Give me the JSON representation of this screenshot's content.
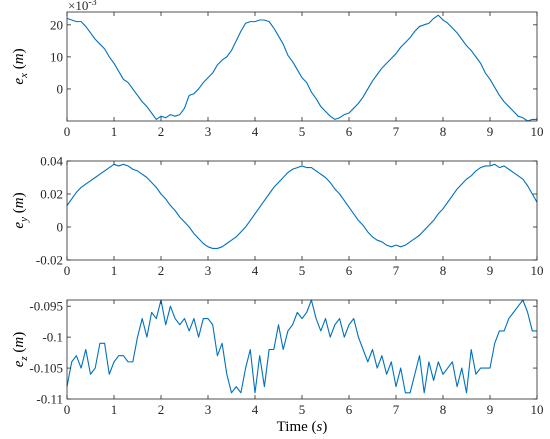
{
  "chart_data": [
    {
      "type": "line",
      "ylabel": "e_x (m)",
      "ylabel_main": "e",
      "ylabel_sub": "x",
      "ylabel_unit": "(m)",
      "exponent": "×10",
      "exponent_power": "-3",
      "xlim": [
        0,
        10
      ],
      "ylim": [
        -10,
        24
      ],
      "xticks": [
        0,
        1,
        2,
        3,
        4,
        5,
        6,
        7,
        8,
        9,
        10
      ],
      "xtick_labels": [
        "0",
        "1",
        "2",
        "3",
        "4",
        "5",
        "6",
        "7",
        "8",
        "9",
        "10"
      ],
      "yticks": [
        0,
        10,
        20
      ],
      "ytick_labels": [
        "0",
        "10",
        "20"
      ],
      "grid": false,
      "series": [
        {
          "color": "#0072bd",
          "x": [
            0,
            0.1,
            0.2,
            0.3,
            0.4,
            0.5,
            0.6,
            0.7,
            0.8,
            0.9,
            1.0,
            1.1,
            1.2,
            1.3,
            1.4,
            1.5,
            1.6,
            1.7,
            1.8,
            1.9,
            2.0,
            2.1,
            2.2,
            2.3,
            2.4,
            2.5,
            2.6,
            2.7,
            2.8,
            2.9,
            3.0,
            3.1,
            3.2,
            3.3,
            3.4,
            3.5,
            3.6,
            3.7,
            3.8,
            3.9,
            4.0,
            4.1,
            4.2,
            4.3,
            4.4,
            4.5,
            4.6,
            4.7,
            4.8,
            4.9,
            5.0,
            5.1,
            5.2,
            5.3,
            5.4,
            5.5,
            5.6,
            5.7,
            5.8,
            5.9,
            6.0,
            6.1,
            6.2,
            6.3,
            6.4,
            6.5,
            6.6,
            6.7,
            6.8,
            6.9,
            7.0,
            7.1,
            7.2,
            7.3,
            7.4,
            7.5,
            7.6,
            7.7,
            7.8,
            7.9,
            8.0,
            8.1,
            8.2,
            8.3,
            8.4,
            8.5,
            8.6,
            8.7,
            8.8,
            8.9,
            9.0,
            9.1,
            9.2,
            9.3,
            9.4,
            9.5,
            9.6,
            9.7,
            9.8,
            9.9,
            10.0
          ],
          "values": [
            22,
            21.5,
            21,
            21,
            19.5,
            17.5,
            15.5,
            14,
            12.5,
            10,
            8,
            5.5,
            3,
            2,
            0,
            -2,
            -4,
            -5.5,
            -7.5,
            -9.5,
            -8.5,
            -9,
            -8,
            -8.5,
            -8,
            -6,
            -2,
            -1.5,
            0,
            2,
            3.5,
            5,
            7.5,
            9,
            10,
            12,
            15,
            18,
            20.5,
            21,
            21,
            21.5,
            21.5,
            21,
            19,
            16.5,
            14,
            10.5,
            8.5,
            6,
            3.5,
            2,
            -1,
            -3,
            -5.5,
            -7,
            -8.5,
            -9.5,
            -9,
            -8,
            -7.5,
            -6,
            -4.5,
            -2.5,
            0,
            2.5,
            4.5,
            6.5,
            8,
            9.5,
            11,
            13,
            14.5,
            16,
            18,
            19.5,
            20,
            20.5,
            22,
            23,
            21.5,
            20.5,
            19,
            17.5,
            15.5,
            13.5,
            12,
            10,
            8,
            5,
            3,
            0.5,
            -2,
            -4,
            -5.5,
            -7,
            -8.5,
            -9,
            -10,
            -9.5,
            -9.5
          ]
        }
      ]
    },
    {
      "type": "line",
      "ylabel": "e_y (m)",
      "ylabel_main": "e",
      "ylabel_sub": "y",
      "ylabel_unit": "(m)",
      "xlim": [
        0,
        10
      ],
      "ylim": [
        -0.02,
        0.04
      ],
      "xticks": [
        0,
        1,
        2,
        3,
        4,
        5,
        6,
        7,
        8,
        9,
        10
      ],
      "xtick_labels": [
        "0",
        "1",
        "2",
        "3",
        "4",
        "5",
        "6",
        "7",
        "8",
        "9",
        "10"
      ],
      "yticks": [
        -0.02,
        0,
        0.02,
        0.04
      ],
      "ytick_labels": [
        "-0.02",
        "0",
        "0.02",
        "0.04"
      ],
      "grid": false,
      "series": [
        {
          "color": "#0072bd",
          "x": [
            0,
            0.1,
            0.2,
            0.3,
            0.4,
            0.5,
            0.6,
            0.7,
            0.8,
            0.9,
            1.0,
            1.1,
            1.2,
            1.3,
            1.4,
            1.5,
            1.6,
            1.7,
            1.8,
            1.9,
            2.0,
            2.1,
            2.2,
            2.3,
            2.4,
            2.5,
            2.6,
            2.7,
            2.8,
            2.9,
            3.0,
            3.1,
            3.2,
            3.3,
            3.4,
            3.5,
            3.6,
            3.7,
            3.8,
            3.9,
            4.0,
            4.1,
            4.2,
            4.3,
            4.4,
            4.5,
            4.6,
            4.7,
            4.8,
            4.9,
            5.0,
            5.1,
            5.2,
            5.3,
            5.4,
            5.5,
            5.6,
            5.7,
            5.8,
            5.9,
            6.0,
            6.1,
            6.2,
            6.3,
            6.4,
            6.5,
            6.6,
            6.7,
            6.8,
            6.9,
            7.0,
            7.1,
            7.2,
            7.3,
            7.4,
            7.5,
            7.6,
            7.7,
            7.8,
            7.9,
            8.0,
            8.1,
            8.2,
            8.3,
            8.4,
            8.5,
            8.6,
            8.7,
            8.8,
            8.9,
            9.0,
            9.1,
            9.2,
            9.3,
            9.4,
            9.5,
            9.6,
            9.7,
            9.8,
            9.9,
            10.0
          ],
          "values": [
            0.013,
            0.017,
            0.021,
            0.024,
            0.026,
            0.028,
            0.03,
            0.032,
            0.034,
            0.036,
            0.038,
            0.037,
            0.038,
            0.037,
            0.035,
            0.034,
            0.032,
            0.03,
            0.027,
            0.024,
            0.02,
            0.017,
            0.013,
            0.01,
            0.006,
            0.003,
            0.0,
            -0.004,
            -0.007,
            -0.01,
            -0.012,
            -0.013,
            -0.013,
            -0.012,
            -0.01,
            -0.008,
            -0.006,
            -0.003,
            0.0,
            0.004,
            0.008,
            0.012,
            0.016,
            0.02,
            0.024,
            0.027,
            0.03,
            0.033,
            0.035,
            0.036,
            0.037,
            0.036,
            0.036,
            0.034,
            0.032,
            0.03,
            0.027,
            0.023,
            0.02,
            0.016,
            0.012,
            0.008,
            0.004,
            0.001,
            -0.003,
            -0.006,
            -0.008,
            -0.009,
            -0.011,
            -0.012,
            -0.011,
            -0.012,
            -0.011,
            -0.009,
            -0.007,
            -0.005,
            -0.002,
            0.001,
            0.004,
            0.008,
            0.011,
            0.015,
            0.019,
            0.023,
            0.026,
            0.029,
            0.031,
            0.034,
            0.036,
            0.037,
            0.037,
            0.038,
            0.036,
            0.037,
            0.035,
            0.033,
            0.031,
            0.029,
            0.025,
            0.02,
            0.015
          ]
        }
      ]
    },
    {
      "type": "line",
      "ylabel": "e_z (m)",
      "ylabel_main": "e",
      "ylabel_sub": "z",
      "ylabel_unit": "(m)",
      "xlabel": "Time (s)",
      "xlabel_main": "Time",
      "xlabel_unit_var": "s",
      "xlim": [
        0,
        10
      ],
      "ylim": [
        -0.11,
        -0.094
      ],
      "xticks": [
        0,
        1,
        2,
        3,
        4,
        5,
        6,
        7,
        8,
        9,
        10
      ],
      "xtick_labels": [
        "0",
        "1",
        "2",
        "3",
        "4",
        "5",
        "6",
        "7",
        "8",
        "9",
        "10"
      ],
      "yticks": [
        -0.11,
        -0.105,
        -0.1,
        -0.095
      ],
      "ytick_labels": [
        "-0.11",
        "-0.105",
        "-0.1",
        "-0.095"
      ],
      "grid": false,
      "series": [
        {
          "color": "#0072bd",
          "x": [
            0,
            0.1,
            0.2,
            0.3,
            0.4,
            0.5,
            0.6,
            0.7,
            0.8,
            0.9,
            1.0,
            1.1,
            1.2,
            1.3,
            1.4,
            1.5,
            1.6,
            1.7,
            1.8,
            1.9,
            2.0,
            2.1,
            2.2,
            2.3,
            2.4,
            2.5,
            2.6,
            2.7,
            2.8,
            2.9,
            3.0,
            3.1,
            3.2,
            3.3,
            3.4,
            3.5,
            3.6,
            3.7,
            3.8,
            3.9,
            4.0,
            4.1,
            4.2,
            4.3,
            4.4,
            4.5,
            4.6,
            4.7,
            4.8,
            4.9,
            5.0,
            5.1,
            5.2,
            5.3,
            5.4,
            5.5,
            5.6,
            5.7,
            5.8,
            5.9,
            6.0,
            6.1,
            6.2,
            6.3,
            6.4,
            6.5,
            6.6,
            6.7,
            6.8,
            6.9,
            7.0,
            7.1,
            7.2,
            7.3,
            7.4,
            7.5,
            7.6,
            7.7,
            7.8,
            7.9,
            8.0,
            8.1,
            8.2,
            8.3,
            8.4,
            8.5,
            8.6,
            8.7,
            8.8,
            8.9,
            9.0,
            9.1,
            9.2,
            9.3,
            9.4,
            9.5,
            9.6,
            9.7,
            9.8,
            9.9,
            10.0
          ],
          "values": [
            -0.108,
            -0.104,
            -0.103,
            -0.105,
            -0.102,
            -0.106,
            -0.105,
            -0.101,
            -0.101,
            -0.106,
            -0.104,
            -0.103,
            -0.103,
            -0.104,
            -0.104,
            -0.1,
            -0.097,
            -0.1,
            -0.096,
            -0.097,
            -0.094,
            -0.098,
            -0.095,
            -0.097,
            -0.098,
            -0.097,
            -0.099,
            -0.097,
            -0.1,
            -0.097,
            -0.097,
            -0.098,
            -0.103,
            -0.101,
            -0.106,
            -0.109,
            -0.108,
            -0.109,
            -0.105,
            -0.102,
            -0.109,
            -0.103,
            -0.108,
            -0.102,
            -0.102,
            -0.098,
            -0.102,
            -0.099,
            -0.098,
            -0.096,
            -0.097,
            -0.096,
            -0.094,
            -0.097,
            -0.099,
            -0.097,
            -0.1,
            -0.098,
            -0.097,
            -0.1,
            -0.098,
            -0.097,
            -0.1,
            -0.102,
            -0.104,
            -0.102,
            -0.105,
            -0.103,
            -0.106,
            -0.104,
            -0.108,
            -0.105,
            -0.109,
            -0.109,
            -0.106,
            -0.103,
            -0.109,
            -0.104,
            -0.107,
            -0.104,
            -0.106,
            -0.105,
            -0.104,
            -0.108,
            -0.105,
            -0.109,
            -0.102,
            -0.106,
            -0.105,
            -0.105,
            -0.105,
            -0.101,
            -0.099,
            -0.099,
            -0.097,
            -0.096,
            -0.095,
            -0.094,
            -0.096,
            -0.099,
            -0.099
          ]
        }
      ]
    }
  ]
}
